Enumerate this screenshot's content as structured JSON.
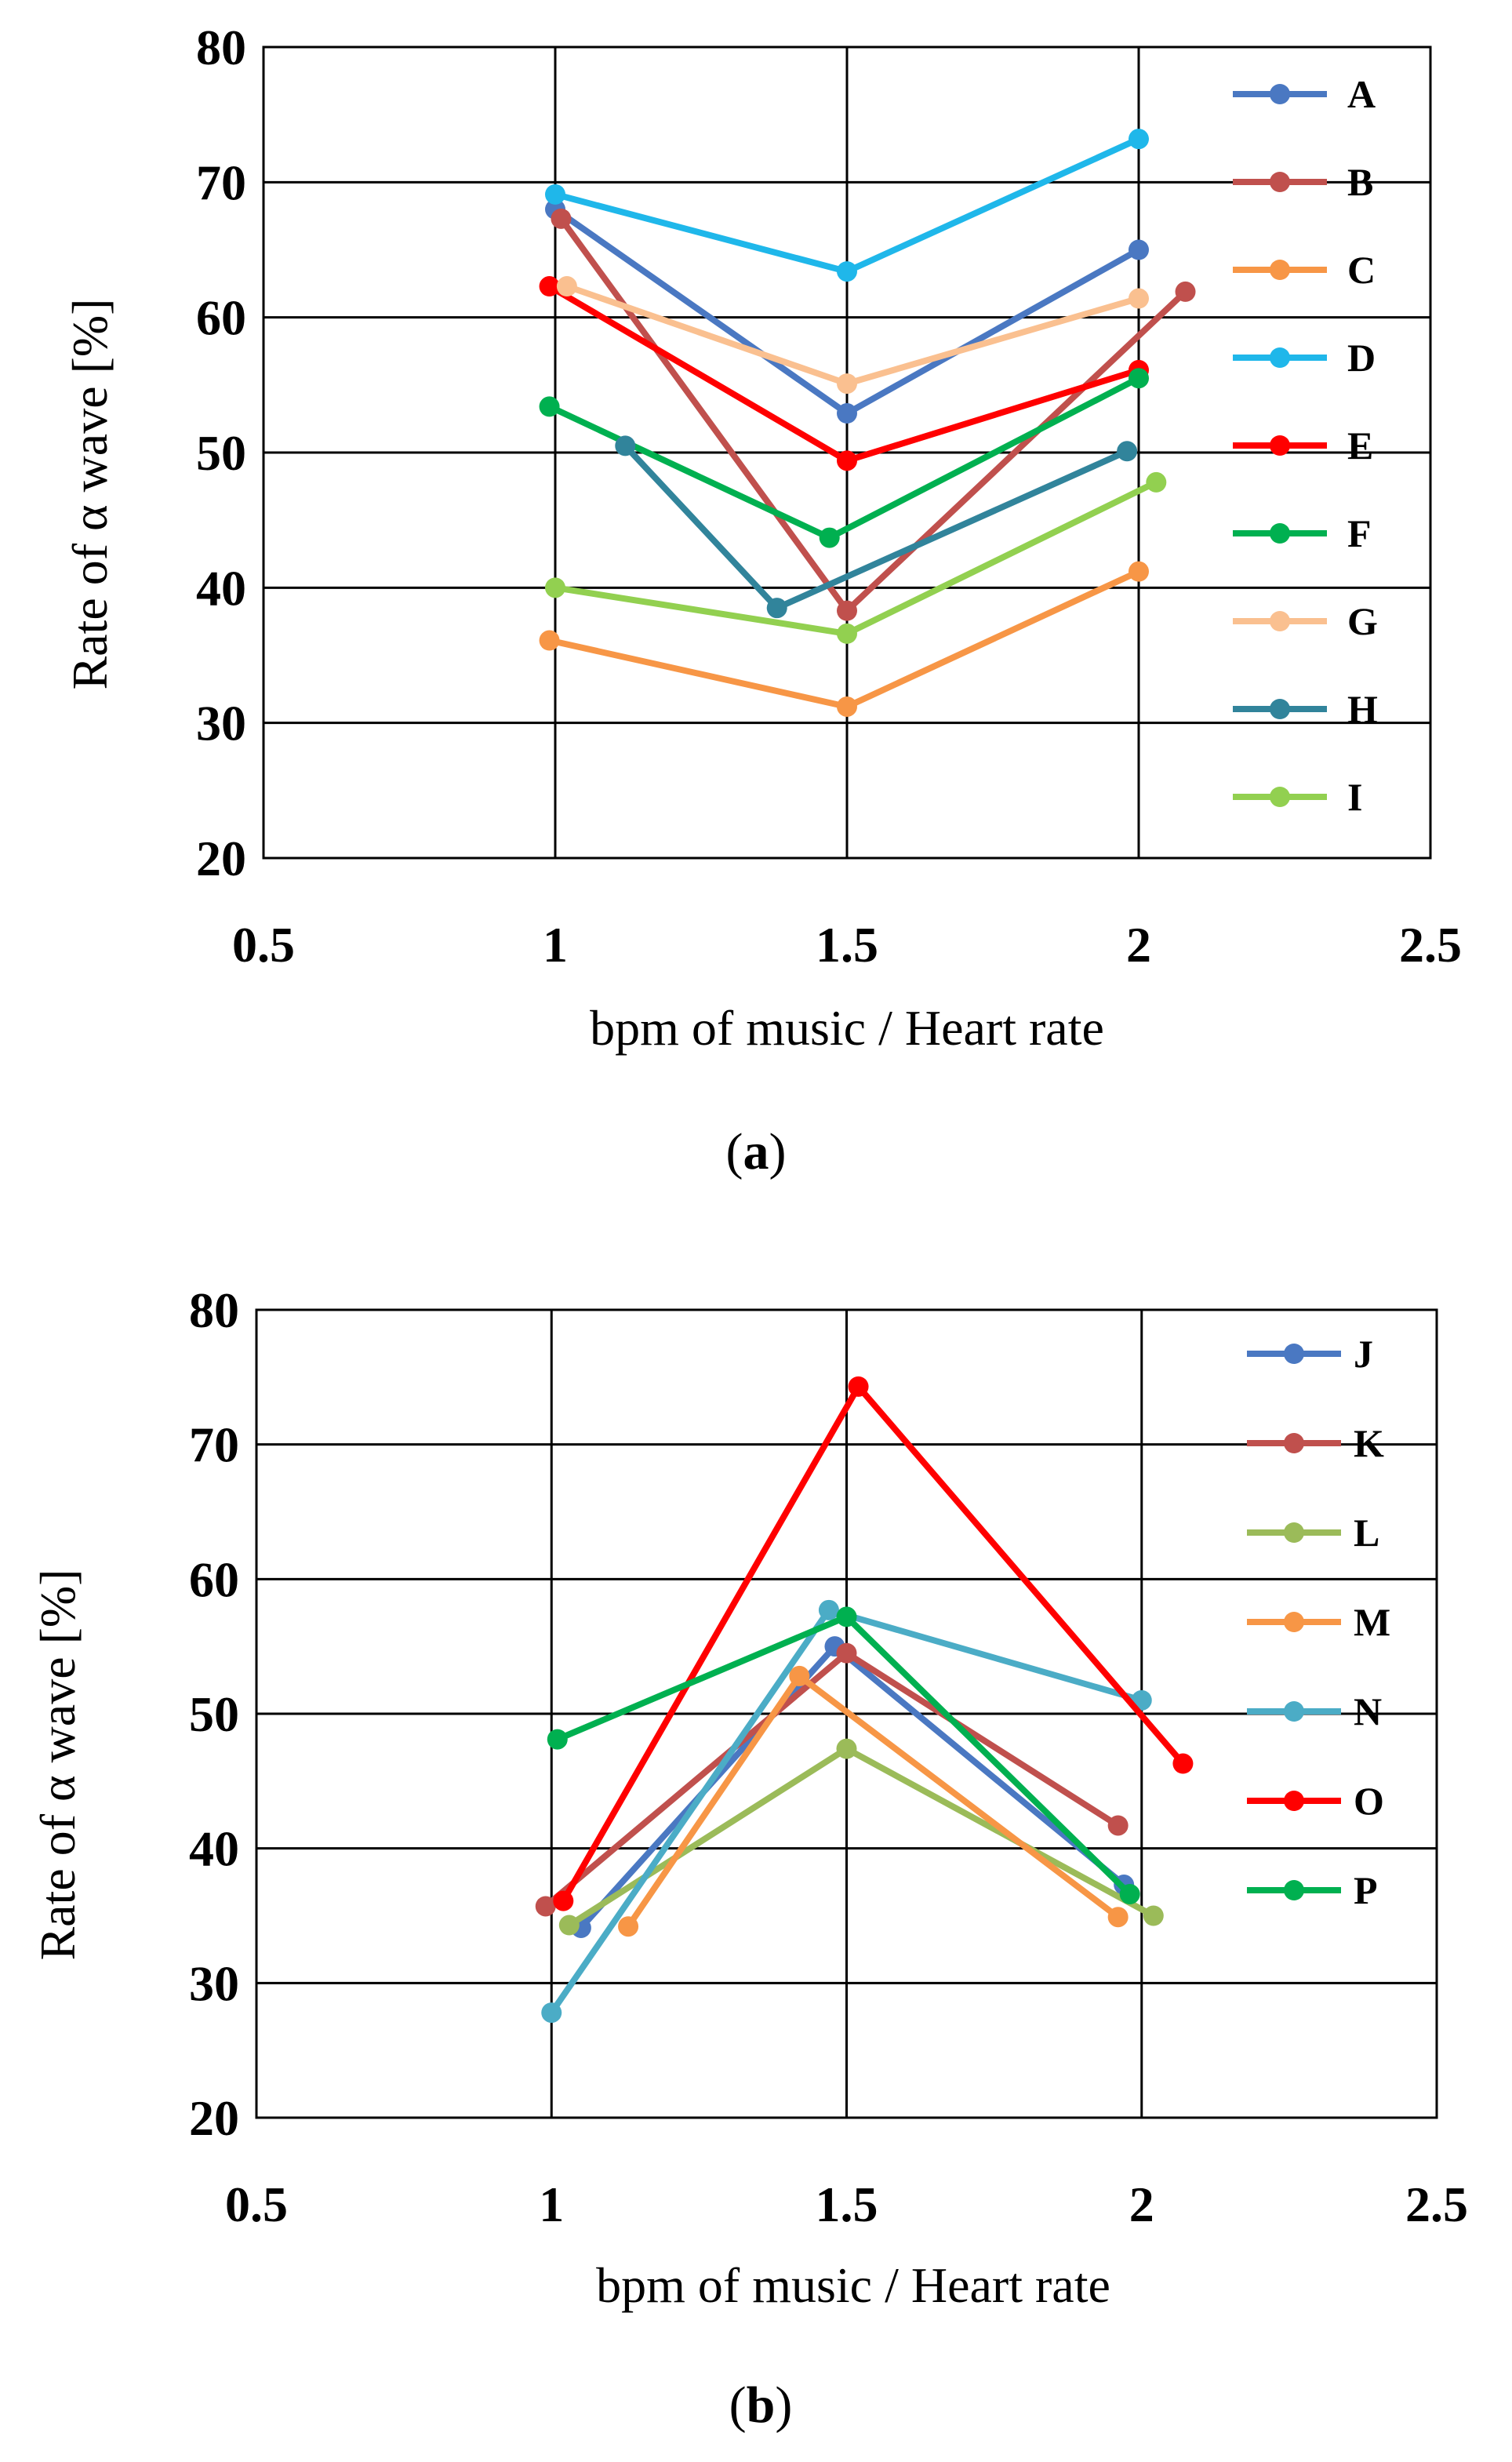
{
  "chart_data": [
    {
      "type": "line",
      "caption": "a",
      "xlabel": "bpm of music / Heart rate",
      "ylabel": "Rate of α wave [%]",
      "xlim": [
        0.5,
        2.5
      ],
      "ylim": [
        20,
        80
      ],
      "xticks": [
        0.5,
        1,
        1.5,
        2,
        2.5
      ],
      "xtick_labels": [
        "0.5",
        "1",
        "1.5",
        "2",
        "2.5"
      ],
      "yticks": [
        20,
        30,
        40,
        50,
        60,
        70,
        80
      ],
      "ytick_labels": [
        "20",
        "30",
        "40",
        "50",
        "60",
        "70",
        "80"
      ],
      "grid": true,
      "legend_position": "right",
      "series": [
        {
          "name": "A",
          "color": "#4a78c2",
          "points": [
            [
              1.0,
              68.0
            ],
            [
              1.5,
              52.9
            ],
            [
              2.0,
              65.0
            ]
          ]
        },
        {
          "name": "B",
          "color": "#c0504d",
          "points": [
            [
              1.01,
              67.3
            ],
            [
              1.5,
              38.3
            ],
            [
              2.08,
              61.9
            ]
          ]
        },
        {
          "name": "C",
          "color": "#f79646",
          "points": [
            [
              0.99,
              36.1
            ],
            [
              1.5,
              31.2
            ],
            [
              2.0,
              41.2
            ]
          ]
        },
        {
          "name": "D",
          "color": "#1fb7ea",
          "points": [
            [
              1.0,
              69.1
            ],
            [
              1.5,
              63.4
            ],
            [
              2.0,
              73.2
            ]
          ]
        },
        {
          "name": "E",
          "color": "#ff0000",
          "points": [
            [
              0.99,
              62.3
            ],
            [
              1.5,
              49.4
            ],
            [
              2.0,
              56.1
            ]
          ]
        },
        {
          "name": "F",
          "color": "#00b050",
          "points": [
            [
              0.99,
              53.4
            ],
            [
              1.47,
              43.7
            ],
            [
              2.0,
              55.5
            ]
          ]
        },
        {
          "name": "G",
          "color": "#fac090",
          "points": [
            [
              1.02,
              62.3
            ],
            [
              1.5,
              55.1
            ],
            [
              2.0,
              61.4
            ]
          ]
        },
        {
          "name": "H",
          "color": "#31849b",
          "points": [
            [
              1.12,
              50.5
            ],
            [
              1.38,
              38.5
            ],
            [
              1.98,
              50.1
            ]
          ]
        },
        {
          "name": "I",
          "color": "#92d050",
          "points": [
            [
              1.0,
              40.0
            ],
            [
              1.5,
              36.6
            ],
            [
              2.03,
              47.8
            ]
          ]
        }
      ]
    },
    {
      "type": "line",
      "caption": "b",
      "xlabel": "bpm of music / Heart rate",
      "ylabel": "Rate of α wave [%]",
      "xlim": [
        0.5,
        2.5
      ],
      "ylim": [
        20,
        80
      ],
      "xticks": [
        0.5,
        1,
        1.5,
        2,
        2.5
      ],
      "xtick_labels": [
        "0.5",
        "1",
        "1.5",
        "2",
        "2.5"
      ],
      "yticks": [
        20,
        30,
        40,
        50,
        60,
        70,
        80
      ],
      "ytick_labels": [
        "20",
        "30",
        "40",
        "50",
        "60",
        "70",
        "80"
      ],
      "grid": true,
      "legend_position": "top-right",
      "series": [
        {
          "name": "J",
          "color": "#4a78c2",
          "points": [
            [
              1.05,
              34.1
            ],
            [
              1.48,
              55.0
            ],
            [
              1.97,
              37.3
            ]
          ]
        },
        {
          "name": "K",
          "color": "#c0504d",
          "points": [
            [
              0.99,
              35.7
            ],
            [
              1.5,
              54.5
            ],
            [
              1.96,
              41.7
            ]
          ]
        },
        {
          "name": "L",
          "color": "#9bbb59",
          "points": [
            [
              1.03,
              34.3
            ],
            [
              1.5,
              47.4
            ],
            [
              2.02,
              35.0
            ]
          ]
        },
        {
          "name": "M",
          "color": "#f79646",
          "points": [
            [
              1.13,
              34.2
            ],
            [
              1.42,
              52.8
            ],
            [
              1.96,
              34.9
            ]
          ]
        },
        {
          "name": "N",
          "color": "#4bacc6",
          "points": [
            [
              1.0,
              27.8
            ],
            [
              1.47,
              57.7
            ],
            [
              2.0,
              51.0
            ]
          ]
        },
        {
          "name": "O",
          "color": "#ff0000",
          "points": [
            [
              1.02,
              36.1
            ],
            [
              1.52,
              74.3
            ],
            [
              2.07,
              46.3
            ]
          ]
        },
        {
          "name": "P",
          "color": "#00b050",
          "points": [
            [
              1.01,
              48.1
            ],
            [
              1.5,
              57.2
            ],
            [
              1.98,
              36.6
            ]
          ]
        }
      ]
    }
  ]
}
